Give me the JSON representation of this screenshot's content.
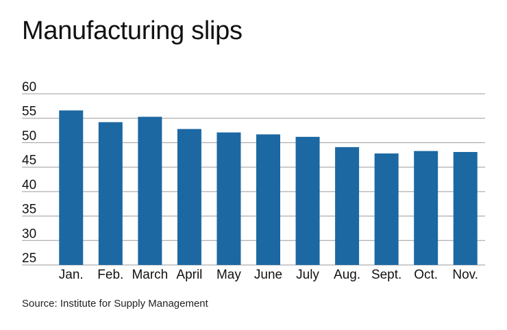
{
  "title": "Manufacturing slips",
  "source": "Source: Institute for Supply Management",
  "colors": {
    "bar": "#1c68a2",
    "grid": "#9a9a9a",
    "text": "#111111"
  },
  "chart_data": {
    "type": "bar",
    "title": "Manufacturing slips",
    "xlabel": "",
    "ylabel": "",
    "categories": [
      "Jan.",
      "Feb.",
      "March",
      "April",
      "May",
      "June",
      "July",
      "Aug.",
      "Sept.",
      "Oct.",
      "Nov."
    ],
    "values": [
      56.6,
      54.2,
      55.3,
      52.8,
      52.1,
      51.7,
      51.2,
      49.1,
      47.8,
      48.3,
      48.1
    ],
    "ylim": [
      25,
      60
    ],
    "yticks": [
      25,
      30,
      35,
      40,
      45,
      50,
      55,
      60
    ],
    "grid": true,
    "legend": "none"
  }
}
